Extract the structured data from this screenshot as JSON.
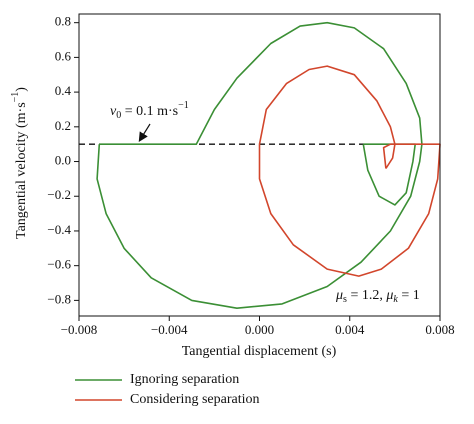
{
  "chart_data": {
    "type": "line",
    "xlabel": "Tangential displacement (s)",
    "ylabel_parts": [
      "Tangential velocity (m·s",
      "−1",
      ")"
    ],
    "annotations": [
      {
        "parts": [
          "v",
          "0",
          " = 0.1 m·s",
          "−1"
        ]
      },
      {
        "parts": [
          "μ",
          "s",
          " = 1.2, ",
          "μ",
          "k",
          " = 1"
        ]
      }
    ],
    "reference_line": 0.1,
    "xlim": [
      -0.008,
      0.008
    ],
    "ylim": [
      -0.89,
      0.85
    ],
    "xticks": [
      {
        "value": -0.008,
        "label": "−0.008"
      },
      {
        "value": -0.004,
        "label": "−0.004"
      },
      {
        "value": 0,
        "label": "0.000"
      },
      0.004,
      0.008
    ],
    "yticks": [
      {
        "value": -0.8,
        "label": "−0.8"
      },
      {
        "value": -0.6,
        "label": "−0.6"
      },
      {
        "value": -0.4,
        "label": "−0.4"
      },
      {
        "value": -0.2,
        "label": "−0.2"
      },
      {
        "value": 0,
        "label": "0.0"
      },
      0.2,
      0.4,
      0.6,
      0.8
    ],
    "series": [
      {
        "name": "Ignoring separation",
        "color": "#3b8f35",
        "x": [
          -0.0071,
          -0.0072,
          -0.0068,
          -0.006,
          -0.0048,
          -0.003,
          -0.001,
          0.001,
          0.003,
          0.0045,
          0.0058,
          0.0067,
          0.0071,
          0.0072,
          0.0071,
          0.0065,
          0.0055,
          0.0042,
          0.003,
          0.0018,
          0.0005,
          -0.001,
          -0.002,
          -0.0028,
          -0.0071,
          null,
          0.0046,
          0.0048,
          0.0053,
          0.006,
          0.0065,
          0.0068,
          0.0069,
          0.0046
        ],
        "values": [
          0.1,
          -0.1,
          -0.3,
          -0.5,
          -0.67,
          -0.8,
          -0.845,
          -0.82,
          -0.72,
          -0.58,
          -0.4,
          -0.2,
          0.0,
          0.1,
          0.25,
          0.45,
          0.65,
          0.77,
          0.8,
          0.78,
          0.68,
          0.48,
          0.3,
          0.1,
          0.1,
          null,
          0.1,
          -0.05,
          -0.2,
          -0.25,
          -0.18,
          0.0,
          0.1,
          0.1
        ]
      },
      {
        "name": "Considering separation",
        "color": "#d2462c",
        "x": [
          0.0056,
          0.0055,
          0.0058,
          0.008,
          0.0079,
          0.0075,
          0.0066,
          0.0054,
          0.0044,
          0.003,
          0.0015,
          0.0005,
          0.0,
          0.0,
          0.0003,
          0.0012,
          0.0022,
          0.003,
          0.0042,
          0.0052,
          0.0058,
          0.006,
          0.0059,
          0.0056
        ],
        "values": [
          -0.04,
          0.08,
          0.1,
          0.1,
          -0.1,
          -0.3,
          -0.5,
          -0.62,
          -0.66,
          -0.62,
          -0.48,
          -0.3,
          -0.1,
          0.1,
          0.3,
          0.45,
          0.53,
          0.55,
          0.5,
          0.35,
          0.2,
          0.1,
          0.02,
          -0.04
        ]
      }
    ]
  }
}
